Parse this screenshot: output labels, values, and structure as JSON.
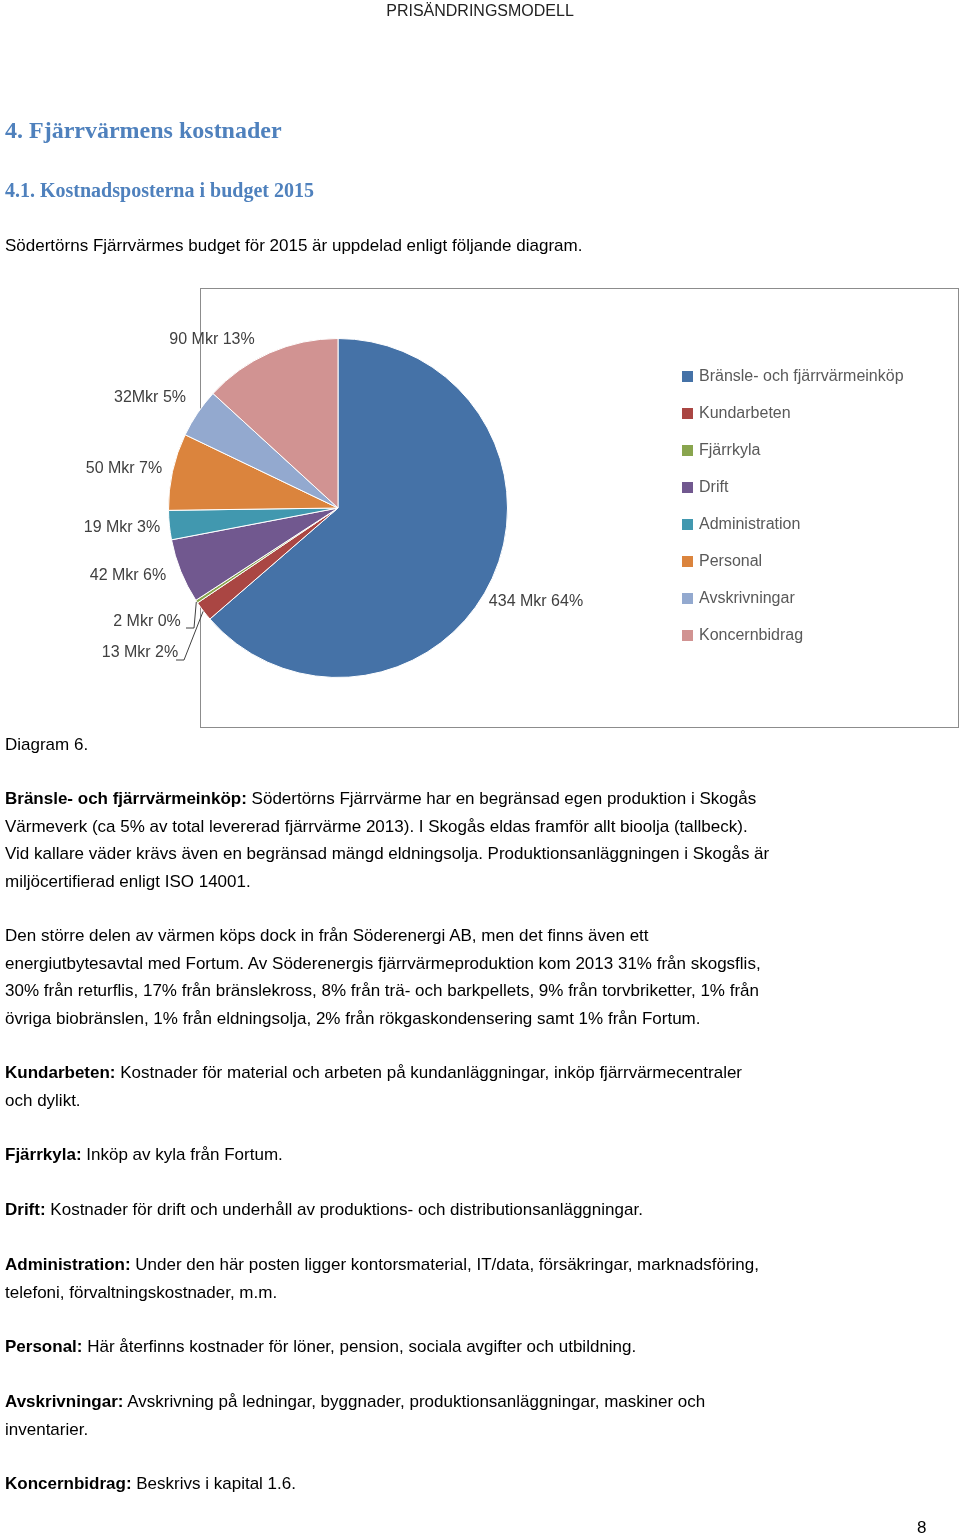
{
  "header": "PRISÄNDRINGSMODELL",
  "heading1": "4. Fjärrvärmens kostnader",
  "heading2": "4.1. Kostnadsposterna i budget 2015",
  "intro": "Södertörns Fjärrvärmes budget för 2015 är uppdelad enligt följande diagram.",
  "chart_data": {
    "type": "pie",
    "categories": [
      "Bränsle- och fjärrvärmeinköp",
      "Kundarbeten",
      "Fjärrkyla",
      "Drift",
      "Administration",
      "Personal",
      "Avskrivningar",
      "Koncernbidrag"
    ],
    "values": [
      434,
      13,
      2,
      42,
      19,
      50,
      32,
      90
    ],
    "value_labels": [
      "434 Mkr 64%",
      "13 Mkr 2%",
      "2 Mkr 0%",
      "42 Mkr 6%",
      "19 Mkr 3%",
      "50 Mkr 7%",
      "32Mkr 5%",
      "90 Mkr 13%"
    ],
    "colors": [
      "#4572A7",
      "#AA4643",
      "#89A54E",
      "#71588F",
      "#4198AF",
      "#DB843D",
      "#93A9CF",
      "#D19392"
    ],
    "legend": "right",
    "data_labels": true
  },
  "caption": "Diagram 6.",
  "paragraphs": [
    {
      "term": "Bränsle- och fjärrvärmeinköp:",
      "lines": [
        "Södertörns Fjärrvärme har en begränsad egen produktion i Skogås",
        "Värmeverk (ca 5% av total levererad fjärrvärme 2013). I Skogås eldas framför allt bioolja (tallbeck).",
        "Vid kallare väder krävs även en begränsad mängd eldningsolja. Produktionsanläggningen i Skogås är",
        "miljöcertifierad enligt ISO 14001."
      ]
    },
    {
      "lines": [
        "Den större delen av värmen köps dock in från Söderenergi AB, men det finns även ett",
        "energiutbytesavtal med Fortum. Av Söderenergis fjärrvärmeproduktion kom 2013 31% från skogsflis,",
        "30% från returflis, 17% från bränslekross, 8% från trä- och barkpellets, 9% från torvbriketter, 1% från",
        "övriga biobränslen, 1% från eldningsolja, 2% från rökgaskondensering samt 1% från Fortum."
      ]
    },
    {
      "term": "Kundarbeten:",
      "lines": [
        "Kostnader för material och arbeten på kundanläggningar, inköp fjärrvärmecentraler",
        "och dylikt."
      ]
    },
    {
      "term": "Fjärrkyla:",
      "lines": [
        "Inköp av kyla från Fortum."
      ]
    },
    {
      "term": "Drift:",
      "lines": [
        "Kostnader för drift och underhåll av produktions- och distributionsanläggningar."
      ]
    },
    {
      "term": "Administration:",
      "lines": [
        "Under den här posten ligger kontorsmaterial, IT/data, försäkringar, marknadsföring,",
        "telefoni, förvaltningskostnader, m.m."
      ]
    },
    {
      "term": "Personal:",
      "lines": [
        "Här återfinns kostnader för löner, pension, sociala avgifter och utbildning."
      ]
    },
    {
      "term": "Avskrivningar:",
      "lines": [
        "Avskrivning på ledningar, byggnader, produktionsanläggningar, maskiner och",
        "inventarier."
      ]
    },
    {
      "term": "Koncernbidrag:",
      "lines": [
        "Beskrivs i kapital 1.6."
      ]
    }
  ],
  "page_number": 8
}
